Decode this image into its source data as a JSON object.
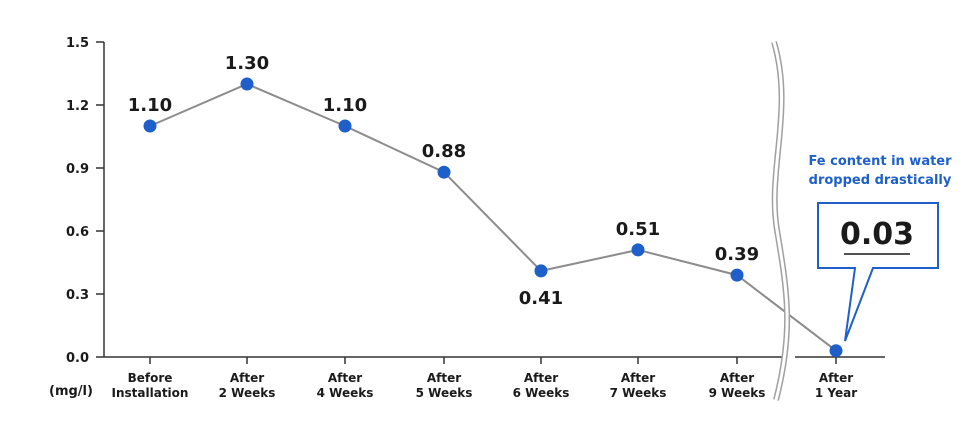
{
  "chart_data": {
    "type": "line",
    "ylabel": "(mg/l)",
    "ylim": [
      0,
      1.5
    ],
    "yticks": [
      "0.0",
      "0.3",
      "0.6",
      "0.9",
      "1.2",
      "1.5"
    ],
    "categories": [
      [
        "Before",
        "Installation"
      ],
      [
        "After",
        "2 Weeks"
      ],
      [
        "After",
        "4 Weeks"
      ],
      [
        "After",
        "5 Weeks"
      ],
      [
        "After",
        "6 Weeks"
      ],
      [
        "After",
        "7 Weeks"
      ],
      [
        "After",
        "9 Weeks"
      ],
      [
        "After",
        "1 Year"
      ]
    ],
    "values": [
      1.1,
      1.3,
      1.1,
      0.88,
      0.41,
      0.51,
      0.39,
      0.03
    ],
    "value_labels": [
      "1.10",
      "1.30",
      "1.10",
      "0.88",
      "0.41",
      "0.51",
      "0.39",
      "0.03"
    ],
    "axis_break": "between 9 Weeks and 1 Year",
    "grid": false,
    "colors": {
      "line": "#8c8c8c",
      "marker": "#1f5fc9",
      "axis": "#333333",
      "callout": "#1f5fc9"
    },
    "annotation": {
      "text_lines": [
        "Fe content in water",
        "dropped drastically"
      ],
      "value": "0.03"
    }
  }
}
